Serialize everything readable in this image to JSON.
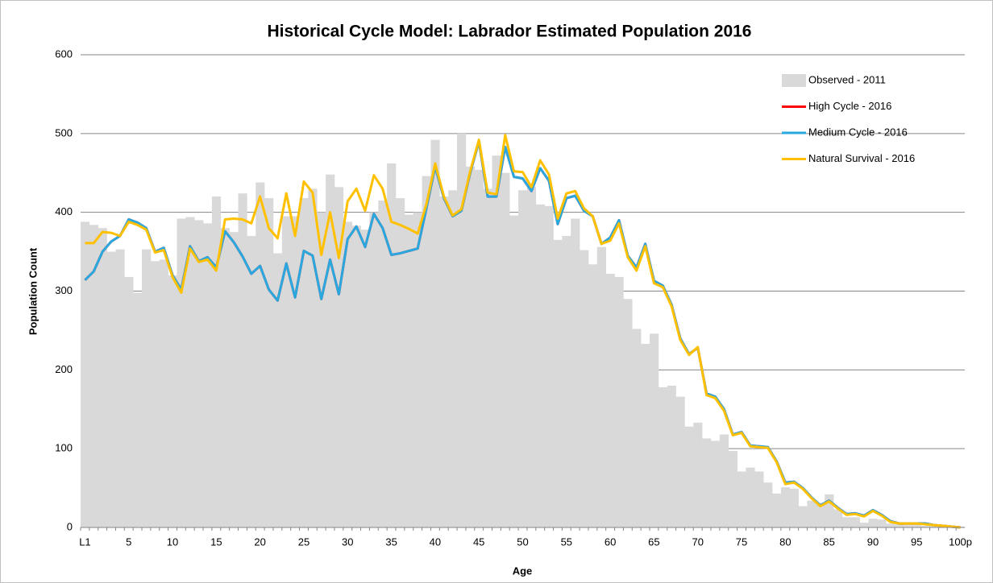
{
  "chart_data": {
    "type": "bar",
    "title": "Historical Cycle Model: Labrador Estimated Population 2016",
    "x_label": "Age",
    "y_label": "Population Count",
    "categories": [
      "L1",
      null,
      null,
      null,
      null,
      "5",
      null,
      null,
      null,
      null,
      "10",
      null,
      null,
      null,
      null,
      "15",
      null,
      null,
      null,
      null,
      "20",
      null,
      null,
      null,
      null,
      "25",
      null,
      null,
      null,
      null,
      "30",
      null,
      null,
      null,
      null,
      "35",
      null,
      null,
      null,
      null,
      "40",
      null,
      null,
      null,
      null,
      "45",
      null,
      null,
      null,
      null,
      "50",
      null,
      null,
      null,
      null,
      "55",
      null,
      null,
      null,
      null,
      "60",
      null,
      null,
      null,
      null,
      "65",
      null,
      null,
      null,
      null,
      "70",
      null,
      null,
      null,
      null,
      "75",
      null,
      null,
      null,
      null,
      "80",
      null,
      null,
      null,
      null,
      "85",
      null,
      null,
      null,
      null,
      "90",
      null,
      null,
      null,
      null,
      "95",
      null,
      null,
      null,
      null,
      "100p"
    ],
    "series": [
      {
        "name": "Observed - 2011",
        "type": "bar",
        "color": "#d9d9d9",
        "values": [
          388,
          384,
          380,
          350,
          353,
          318,
          298,
          353,
          338,
          340,
          320,
          392,
          394,
          390,
          386,
          420,
          380,
          375,
          424,
          370,
          438,
          418,
          348,
          395,
          395,
          418,
          430,
          400,
          448,
          432,
          388,
          383,
          378,
          400,
          415,
          462,
          418,
          397,
          400,
          446,
          492,
          420,
          428,
          500,
          458,
          454,
          430,
          472,
          450,
          396,
          428,
          432,
          410,
          408,
          365,
          370,
          392,
          352,
          334,
          356,
          322,
          318,
          290,
          252,
          233,
          246,
          178,
          180,
          166,
          128,
          133,
          113,
          110,
          118,
          97,
          71,
          76,
          71,
          57,
          43,
          51,
          49,
          27,
          34,
          31,
          42,
          23,
          13,
          13,
          6,
          11,
          10,
          5,
          4,
          3,
          3,
          2,
          2,
          1,
          1,
          1
        ]
      },
      {
        "name": "High Cycle - 2016",
        "type": "line",
        "color": "#ff0000",
        "values": [
          314,
          325,
          350,
          363,
          370,
          391,
          387,
          380,
          350,
          355,
          320,
          302,
          357,
          338,
          343,
          330,
          376,
          362,
          344,
          322,
          332,
          302,
          288,
          335,
          292,
          351,
          345,
          290,
          340,
          296,
          366,
          382,
          356,
          398,
          380,
          346,
          348,
          351,
          354,
          405,
          458,
          418,
          395,
          402,
          450,
          490,
          420,
          420,
          483,
          445,
          443,
          427,
          456,
          440,
          385,
          418,
          421,
          402,
          395,
          360,
          368,
          390,
          345,
          330,
          360,
          313,
          307,
          283,
          240,
          220,
          228,
          170,
          166,
          150,
          118,
          121,
          104,
          103,
          102,
          84,
          57,
          58,
          50,
          38,
          28,
          34,
          25,
          17,
          18,
          15,
          22,
          16,
          8,
          5,
          5,
          5,
          5,
          3,
          2,
          1,
          0
        ]
      },
      {
        "name": "Medium Cycle - 2016",
        "type": "line",
        "color": "#29a8e0",
        "values": [
          314,
          325,
          350,
          363,
          370,
          391,
          387,
          380,
          350,
          355,
          320,
          302,
          357,
          338,
          343,
          330,
          376,
          362,
          344,
          322,
          332,
          302,
          288,
          335,
          292,
          351,
          345,
          290,
          340,
          296,
          366,
          382,
          356,
          398,
          380,
          346,
          348,
          351,
          354,
          405,
          458,
          418,
          395,
          402,
          450,
          490,
          420,
          420,
          483,
          445,
          443,
          427,
          456,
          440,
          385,
          418,
          421,
          402,
          395,
          360,
          368,
          390,
          345,
          330,
          360,
          313,
          307,
          283,
          240,
          220,
          228,
          170,
          166,
          150,
          118,
          121,
          104,
          103,
          102,
          84,
          57,
          58,
          50,
          38,
          28,
          34,
          25,
          17,
          18,
          15,
          22,
          16,
          8,
          5,
          5,
          5,
          5,
          3,
          2,
          1,
          0
        ]
      },
      {
        "name": "Natural Survival - 2016",
        "type": "line",
        "color": "#ffc000",
        "values": [
          361,
          361,
          375,
          374,
          370,
          388,
          384,
          378,
          349,
          352,
          318,
          298,
          354,
          337,
          340,
          326,
          391,
          392,
          391,
          386,
          420,
          380,
          367,
          424,
          370,
          439,
          425,
          346,
          400,
          342,
          414,
          430,
          402,
          447,
          430,
          388,
          384,
          379,
          373,
          410,
          462,
          420,
          396,
          404,
          452,
          492,
          425,
          423,
          498,
          452,
          451,
          432,
          466,
          448,
          392,
          424,
          427,
          405,
          395,
          360,
          364,
          386,
          343,
          326,
          357,
          310,
          305,
          281,
          238,
          219,
          229,
          168,
          164,
          148,
          117,
          120,
          103,
          102,
          101,
          83,
          55,
          57,
          49,
          37,
          27,
          33,
          24,
          16,
          17,
          14,
          21,
          15,
          7,
          5,
          5,
          5,
          4,
          3,
          2,
          1,
          0
        ]
      }
    ],
    "ylim": [
      0,
      600
    ],
    "yticks": [
      0,
      100,
      200,
      300,
      400,
      500,
      600
    ],
    "grid": true,
    "legend": "upper right"
  }
}
